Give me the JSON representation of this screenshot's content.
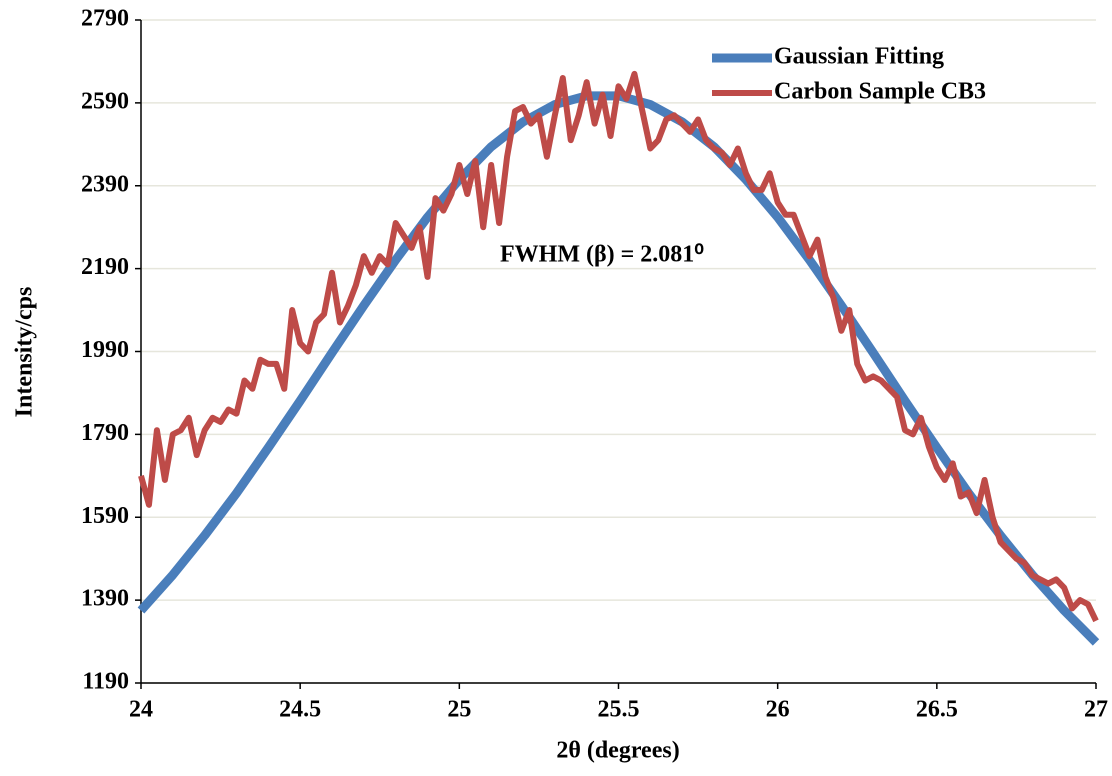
{
  "chart_data": {
    "type": "line",
    "xlabel": "2θ (degrees)",
    "ylabel": "Intensity/cps",
    "annotation": "FWHM (β) = 2.081⁰",
    "xlim": [
      24,
      27
    ],
    "xticks": [
      24,
      24.5,
      25,
      25.5,
      26,
      26.5,
      27
    ],
    "ylim": [
      1190,
      2790
    ],
    "yticks": [
      1190,
      1390,
      1590,
      1790,
      1990,
      2190,
      2390,
      2590,
      2790
    ],
    "grid": true,
    "legend": "upper right",
    "series": [
      {
        "name": "Gaussian Fitting",
        "color": "#4a7ebb",
        "x": [
          24,
          24.1,
          24.2,
          24.3,
          24.4,
          24.5,
          24.6,
          24.7,
          24.8,
          24.9,
          25,
          25.1,
          25.2,
          25.3,
          25.4,
          25.5,
          25.6,
          25.7,
          25.8,
          25.9,
          26,
          26.1,
          26.2,
          26.3,
          26.4,
          26.5,
          26.6,
          26.7,
          26.8,
          26.9,
          27
        ],
        "values": [
          1365,
          1451,
          1546,
          1648,
          1758,
          1871,
          1987,
          2101,
          2211,
          2314,
          2405,
          2484,
          2544,
          2586,
          2607,
          2607,
          2586,
          2544,
          2484,
          2405,
          2314,
          2211,
          2101,
          1987,
          1871,
          1758,
          1648,
          1546,
          1451,
          1365,
          1288
        ]
      },
      {
        "name": "Carbon Sample CB3",
        "color": "#be4b48",
        "x": [
          24,
          24.025,
          24.05,
          24.075,
          24.1,
          24.125,
          24.15,
          24.175,
          24.2,
          24.225,
          24.25,
          24.275,
          24.3,
          24.325,
          24.35,
          24.375,
          24.4,
          24.425,
          24.45,
          24.475,
          24.5,
          24.525,
          24.55,
          24.575,
          24.6,
          24.625,
          24.65,
          24.675,
          24.7,
          24.725,
          24.75,
          24.775,
          24.8,
          24.825,
          24.85,
          24.875,
          24.9,
          24.925,
          24.95,
          24.975,
          25,
          25.025,
          25.05,
          25.075,
          25.1,
          25.125,
          25.15,
          25.175,
          25.2,
          25.225,
          25.25,
          25.275,
          25.3,
          25.325,
          25.35,
          25.375,
          25.4,
          25.425,
          25.45,
          25.475,
          25.5,
          25.525,
          25.55,
          25.575,
          25.6,
          25.625,
          25.65,
          25.675,
          25.7,
          25.725,
          25.75,
          25.775,
          25.8,
          25.825,
          25.85,
          25.875,
          25.9,
          25.925,
          25.95,
          25.975,
          26,
          26.025,
          26.05,
          26.075,
          26.1,
          26.125,
          26.15,
          26.175,
          26.2,
          26.225,
          26.25,
          26.275,
          26.3,
          26.325,
          26.35,
          26.375,
          26.4,
          26.425,
          26.45,
          26.475,
          26.5,
          26.525,
          26.55,
          26.575,
          26.6,
          26.625,
          26.65,
          26.675,
          26.7,
          26.725,
          26.75,
          26.775,
          26.8,
          26.825,
          26.85,
          26.875,
          26.9,
          26.925,
          26.95,
          26.975,
          27
        ],
        "values": [
          1690,
          1620,
          1800,
          1680,
          1790,
          1800,
          1830,
          1740,
          1800,
          1830,
          1820,
          1850,
          1840,
          1920,
          1900,
          1970,
          1960,
          1960,
          1900,
          2090,
          2010,
          1990,
          2060,
          2080,
          2180,
          2060,
          2100,
          2150,
          2220,
          2180,
          2220,
          2200,
          2300,
          2270,
          2240,
          2290,
          2170,
          2360,
          2330,
          2370,
          2440,
          2370,
          2450,
          2290,
          2440,
          2300,
          2460,
          2570,
          2580,
          2540,
          2560,
          2460,
          2560,
          2650,
          2500,
          2560,
          2640,
          2540,
          2610,
          2510,
          2630,
          2600,
          2660,
          2570,
          2480,
          2500,
          2550,
          2560,
          2540,
          2520,
          2550,
          2500,
          2480,
          2470,
          2440,
          2480,
          2420,
          2380,
          2380,
          2420,
          2350,
          2320,
          2320,
          2270,
          2220,
          2260,
          2170,
          2120,
          2040,
          2090,
          1960,
          1920,
          1930,
          1920,
          1900,
          1880,
          1800,
          1790,
          1830,
          1760,
          1710,
          1680,
          1720,
          1640,
          1650,
          1600,
          1680,
          1590,
          1530,
          1510,
          1490,
          1480,
          1450,
          1440,
          1430,
          1440,
          1420,
          1370,
          1390,
          1380,
          1340
        ]
      }
    ]
  }
}
